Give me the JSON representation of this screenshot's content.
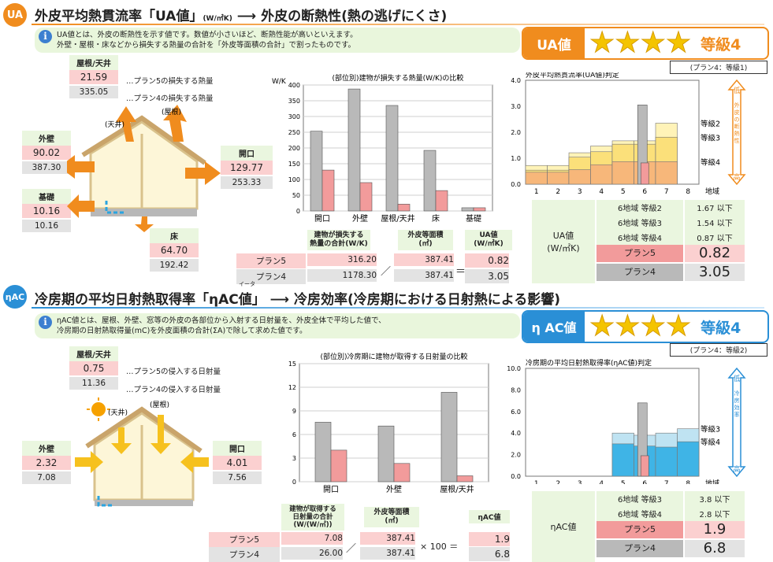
{
  "ua": {
    "badge": "UA",
    "title": "外皮平均熱貫流率「UA値」",
    "unit": "(W/㎡K)",
    "arrow": "⟶",
    "subtitle": "外皮の断熱性(熱の逃げにくさ)",
    "note_line1": "UA値とは、外皮の断熱性を示す値です。数値が小さいほど、断熱性能が高いといえます。",
    "note_line2": "外壁・屋根・床などから損失する熱量の合計を「外皮等面積の合計」で割ったものです。",
    "grade_label": "UA値",
    "grade_text": "等級4",
    "grade_stars": 4,
    "plan_note": "(プラン4：等級1)",
    "legend_plan5": "…プラン5の損失する熱量",
    "legend_plan4": "…プラン4の損失する熱量",
    "house_labels": {
      "roof": "(屋根)",
      "ceiling": "(天井)"
    },
    "parts": [
      {
        "label": "屋根/天井",
        "p5": "21.59",
        "p4": "335.05"
      },
      {
        "label": "外壁",
        "p5": "90.02",
        "p4": "387.30"
      },
      {
        "label": "開口",
        "p5": "129.77",
        "p4": "253.33"
      },
      {
        "label": "基礎",
        "p5": "10.16",
        "p4": "10.16"
      },
      {
        "label": "床",
        "p5": "64.70",
        "p4": "192.42"
      }
    ],
    "calc": {
      "h1": "建物が損失する\n熱量の合計(W/K)",
      "h2": "外皮等面積\n(㎡)",
      "h3": "UA値\n(W/㎡K)",
      "rows": [
        {
          "plan": "プラン5",
          "total": "316.20",
          "area": "387.41",
          "value": "0.82"
        },
        {
          "plan": "プラン4",
          "total": "1178.30",
          "area": "387.41",
          "value": "3.05"
        }
      ],
      "slash": "／",
      "eq": "＝"
    },
    "judge": {
      "label": "UA値\n(W/㎡K)",
      "rows": [
        {
          "name": "6地域 等級2",
          "value": "1.67 以下"
        },
        {
          "name": "6地域 等級3",
          "value": "1.54 以下"
        },
        {
          "name": "6地域 等級4",
          "value": "0.87 以下"
        }
      ],
      "plan5": {
        "name": "プラン5",
        "value": "0.82"
      },
      "plan4": {
        "name": "プラン4",
        "value": "3.05"
      }
    }
  },
  "eta": {
    "badge": "ηAC",
    "title": "冷房期の平均日射熱取得率「ηAC値」",
    "ruby": "イータ",
    "arrow": "⟶",
    "subtitle": "冷房効率(冷房期における日射熱による影響)",
    "note_line1": "ηAC値とは、屋根、外壁、窓等の外皮の各部位から入射する日射量を、外皮全体で平均した値で、",
    "note_line2": "冷房期の日射熱取得量(mC)を外皮面積の合計(ΣA)で除して求めた値です。",
    "grade_label": "η AC値",
    "grade_text": "等級4",
    "grade_stars": 4,
    "plan_note": "(プラン4：等級2)",
    "legend_plan5": "…プラン5の侵入する日射量",
    "legend_plan4": "…プラン4の侵入する日射量",
    "house_labels": {
      "roof": "(屋根)",
      "ceiling": "(天井)"
    },
    "parts": [
      {
        "label": "屋根/天井",
        "p5": "0.75",
        "p4": "11.36"
      },
      {
        "label": "外壁",
        "p5": "2.32",
        "p4": "7.08"
      },
      {
        "label": "開口",
        "p5": "4.01",
        "p4": "7.56"
      }
    ],
    "calc": {
      "h1": "建物が取得する\n日射量の合計\n(W/(W/㎡))",
      "h2": "外皮等面積\n(㎡)",
      "h3": "ηAC値",
      "rows": [
        {
          "plan": "プラン5",
          "total": "7.08",
          "area": "387.41",
          "value": "1.9"
        },
        {
          "plan": "プラン4",
          "total": "26.00",
          "area": "387.41",
          "value": "6.8"
        }
      ],
      "slash": "／",
      "times": "× 100 ＝"
    },
    "judge": {
      "label": "ηAC値",
      "rows": [
        {
          "name": "6地域 等級3",
          "value": "3.8 以下"
        },
        {
          "name": "6地域 等級4",
          "value": "2.8 以下"
        }
      ],
      "plan5": {
        "name": "プラン5",
        "value": "1.9"
      },
      "plan4": {
        "name": "プラン4",
        "value": "6.8"
      }
    }
  },
  "chart_data": [
    {
      "type": "bar",
      "title": "(部位別)建物が損失する熱量(W/K)の比較",
      "ylabel": "W/K",
      "ylim": [
        0,
        400
      ],
      "yticks": [
        0,
        50,
        100,
        150,
        200,
        250,
        300,
        350,
        400
      ],
      "categories": [
        "開口",
        "外壁",
        "屋根/天井",
        "床",
        "基礎"
      ],
      "series": [
        {
          "values": [
            253.33,
            387.3,
            335.05,
            192.42,
            10.16
          ],
          "color": "#b9b9b9"
        },
        {
          "values": [
            129.77,
            90.02,
            21.59,
            64.7,
            10.16
          ],
          "color": "#f29b9b"
        }
      ],
      "grid": true
    },
    {
      "type": "bar",
      "title": "外皮平均熱貫流率(UA値)判定",
      "ylim": [
        0,
        4.0
      ],
      "yticks": [
        "0.0",
        "1.0",
        "2.0",
        "3.0",
        "4.0"
      ],
      "categories": [
        "1",
        "2",
        "3",
        "4",
        "5",
        "6",
        "7",
        "8"
      ],
      "xlabel": "地域",
      "series": [
        {
          "name": "等級4",
          "values": [
            0.46,
            0.46,
            0.56,
            0.75,
            0.87,
            0.87,
            0.87,
            null
          ],
          "color": "#f7b77a"
        },
        {
          "name": "等級3",
          "values": [
            0.54,
            0.54,
            1.04,
            1.25,
            1.54,
            1.54,
            1.81,
            null
          ],
          "color": "#fbe07a"
        },
        {
          "name": "等級2",
          "values": [
            0.72,
            0.72,
            1.21,
            1.47,
            1.67,
            1.67,
            2.35,
            null
          ],
          "color": "#fff3b8"
        },
        {
          "name": "プラン4",
          "values": [
            null,
            null,
            null,
            null,
            null,
            3.05,
            null,
            null
          ],
          "color": "#b9b9b9"
        },
        {
          "name": "プラン5",
          "values": [
            null,
            null,
            null,
            null,
            null,
            0.82,
            null,
            null
          ],
          "color": "#f29b9b"
        }
      ],
      "annotations": [
        "等級2",
        "等級3",
        "等級4"
      ],
      "side_scale": {
        "top": "低",
        "bottom": "高",
        "label": "外皮の断熱性"
      }
    },
    {
      "type": "bar",
      "title": "(部位別)冷房期に建物が取得する日射量の比較",
      "ylim": [
        0,
        15
      ],
      "yticks": [
        0,
        3,
        6,
        9,
        12,
        15
      ],
      "categories": [
        "開口",
        "外壁",
        "屋根/天井"
      ],
      "series": [
        {
          "values": [
            7.56,
            7.08,
            11.36
          ],
          "color": "#b9b9b9"
        },
        {
          "values": [
            4.01,
            2.32,
            0.75
          ],
          "color": "#f29b9b"
        }
      ],
      "grid": true
    },
    {
      "type": "bar",
      "title": "冷房期の平均日射熱取得率(ηAC値)判定",
      "ylim": [
        0,
        10.0
      ],
      "yticks": [
        "0.0",
        "2.0",
        "4.0",
        "6.0",
        "8.0",
        "10.0"
      ],
      "categories": [
        "1",
        "2",
        "3",
        "4",
        "5",
        "6",
        "7",
        "8"
      ],
      "xlabel": "地域",
      "series": [
        {
          "name": "等級4",
          "values": [
            null,
            null,
            null,
            null,
            3.0,
            2.8,
            2.7,
            3.2
          ],
          "color": "#3fb4e6"
        },
        {
          "name": "等級3",
          "values": [
            null,
            null,
            null,
            null,
            4.0,
            3.8,
            4.0,
            4.4
          ],
          "color": "#bfe3f2"
        },
        {
          "name": "プラン4",
          "values": [
            null,
            null,
            null,
            null,
            null,
            6.8,
            null,
            null
          ],
          "color": "#b9b9b9"
        },
        {
          "name": "プラン5",
          "values": [
            null,
            null,
            null,
            null,
            null,
            1.9,
            null,
            null
          ],
          "color": "#f29b9b"
        }
      ],
      "annotations": [
        "等級3",
        "等級4"
      ],
      "side_scale": {
        "top": "低",
        "bottom": "高",
        "label": "冷房効率"
      }
    }
  ],
  "colors": {
    "orange": "#f08c1e",
    "blue": "#2a8fd6",
    "pink": "#fbd0d0",
    "gray": "#e3e3e3",
    "green": "#eaf6df"
  }
}
